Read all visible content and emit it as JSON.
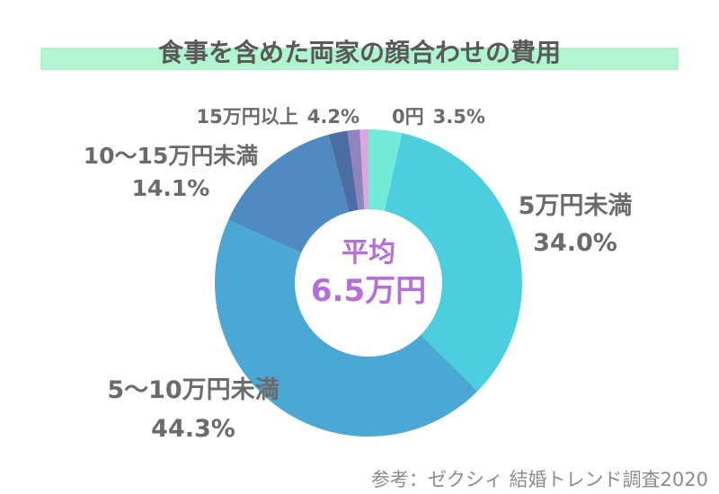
{
  "page": {
    "background": "#ffffff"
  },
  "header": {
    "title": "食事を含めた両家の顔合わせの費用",
    "highlight_color": "#b0f5d0",
    "title_color": "#595959"
  },
  "chart_data": {
    "type": "pie",
    "donut": true,
    "start_angle": "12-oclock",
    "direction": "clockwise",
    "outer_radius_px": 171,
    "inner_radius_px": 82,
    "title": "食事を含めた両家の顔合わせの費用",
    "unit": "%",
    "slices": [
      {
        "label": "0円",
        "value": 3.5,
        "pct_text": "3.5%",
        "color": "#74ead8"
      },
      {
        "label": "5万円未満",
        "value": 34.0,
        "pct_text": "34.0%",
        "color": "#4bcedd"
      },
      {
        "label": "5〜10万円未満",
        "value": 44.3,
        "pct_text": "44.3%",
        "color": "#4ba7d3"
      },
      {
        "label": "10〜15万円未満",
        "value": 14.1,
        "pct_text": "14.1%",
        "color": "#4f8bc0"
      },
      {
        "label": "15万円以上",
        "value": 4.2,
        "pct_text": "4.2%",
        "color": "#4c6da4",
        "sub_slices": [
          {
            "value": 2.0,
            "color": "#4c6da4"
          },
          {
            "value": 1.3,
            "color": "#9183bc"
          },
          {
            "value": 0.9,
            "color": "#d9a8dc"
          }
        ]
      }
    ],
    "center_label": {
      "line1": "平均",
      "line2": "6.5万円",
      "color": "#b46fd8"
    },
    "legend": "none",
    "labels_position": "around-donut"
  },
  "footer": {
    "source": "参考：ゼクシィ 結婚トレンド調査2020"
  }
}
